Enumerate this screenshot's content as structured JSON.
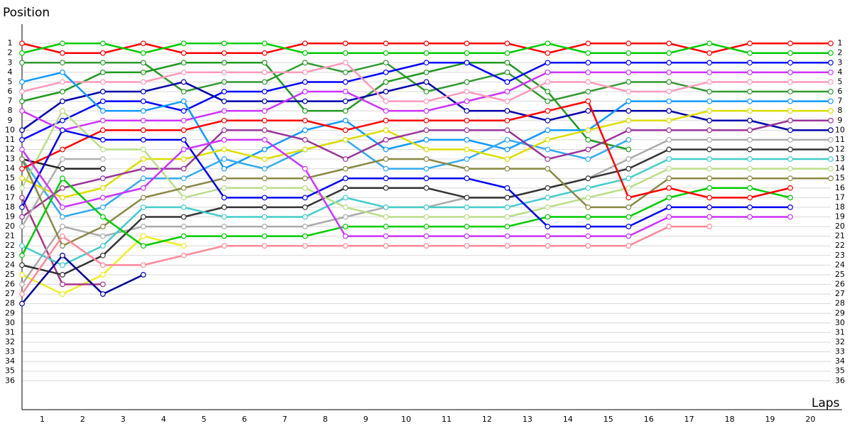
{
  "chart_data": {
    "type": "line",
    "y_label": "Position",
    "x_label": "Laps",
    "x": [
      0,
      1,
      2,
      3,
      4,
      5,
      6,
      7,
      8,
      9,
      10,
      11,
      12,
      13,
      14,
      15,
      16,
      17,
      18,
      19,
      20
    ],
    "xlim": [
      0,
      20
    ],
    "xticks": [
      1,
      2,
      3,
      4,
      5,
      6,
      7,
      8,
      9,
      10,
      11,
      12,
      13,
      14,
      15,
      16,
      17,
      18,
      19,
      20
    ],
    "ylim": [
      39,
      -1
    ],
    "yticks": [
      1,
      2,
      3,
      4,
      5,
      6,
      7,
      8,
      9,
      10,
      11,
      12,
      13,
      14,
      15,
      16,
      17,
      18,
      19,
      20,
      21,
      22,
      23,
      24,
      25,
      26,
      27,
      28,
      29,
      30,
      31,
      32,
      33,
      34,
      35,
      36
    ],
    "grid": true,
    "series": [
      {
        "color": "#ff0000",
        "values": [
          1,
          2,
          2,
          1,
          2,
          2,
          2,
          1,
          1,
          1,
          1,
          1,
          1,
          2,
          1,
          1,
          1,
          2,
          1,
          1,
          1
        ]
      },
      {
        "color": "#00cc00",
        "values": [
          2,
          1,
          1,
          2,
          1,
          1,
          1,
          2,
          2,
          2,
          2,
          2,
          2,
          1,
          2,
          2,
          2,
          1,
          2,
          2,
          2
        ]
      },
      {
        "color": "#339933",
        "values": [
          3,
          3,
          3,
          3,
          6,
          5,
          5,
          3,
          4,
          3,
          6,
          5,
          4,
          7,
          6,
          5,
          5,
          6,
          6,
          6,
          6
        ]
      },
      {
        "color": "#229922",
        "values": [
          7,
          6,
          4,
          4,
          3,
          3,
          3,
          8,
          8,
          5,
          4,
          3,
          3,
          6,
          11,
          12,
          null,
          null,
          null,
          null,
          null
        ]
      },
      {
        "color": "#0000ff",
        "values": [
          11,
          9,
          7,
          7,
          8,
          6,
          6,
          5,
          5,
          4,
          3,
          3,
          5,
          3,
          3,
          3,
          3,
          3,
          3,
          3,
          3
        ]
      },
      {
        "color": "#0000aa",
        "values": [
          10,
          7,
          6,
          6,
          5,
          7,
          7,
          7,
          7,
          6,
          5,
          8,
          8,
          9,
          8,
          8,
          8,
          9,
          9,
          10,
          10
        ]
      },
      {
        "color": "#cc33ff",
        "values": [
          8,
          10,
          9,
          9,
          9,
          8,
          8,
          6,
          6,
          8,
          8,
          7,
          6,
          4,
          4,
          4,
          4,
          4,
          4,
          4,
          4
        ]
      },
      {
        "color": "#ff99bb",
        "values": [
          6,
          5,
          5,
          5,
          4,
          4,
          4,
          4,
          3,
          7,
          7,
          6,
          7,
          5,
          5,
          6,
          6,
          5,
          5,
          5,
          5
        ]
      },
      {
        "color": "#1199ff",
        "values": [
          5,
          4,
          8,
          8,
          7,
          14,
          12,
          10,
          9,
          12,
          11,
          11,
          12,
          10,
          10,
          7,
          7,
          7,
          7,
          7,
          7
        ]
      },
      {
        "color": "#33aaee",
        "values": [
          13,
          19,
          18,
          15,
          15,
          13,
          14,
          12,
          11,
          14,
          14,
          13,
          11,
          12,
          13,
          11,
          null,
          null,
          null,
          null,
          null
        ]
      },
      {
        "color": "#dddd00",
        "values": [
          15,
          17,
          16,
          13,
          13,
          12,
          13,
          12,
          11,
          10,
          12,
          12,
          13,
          11,
          10,
          9,
          9,
          8,
          8,
          8,
          8
        ]
      },
      {
        "color": "#eeee22",
        "values": [
          25,
          27,
          25,
          21,
          22,
          null,
          null,
          null,
          null,
          null,
          null,
          null,
          null,
          null,
          null,
          null,
          null,
          null,
          null,
          null,
          null
        ]
      },
      {
        "color": "#993399",
        "values": [
          19,
          16,
          15,
          14,
          14,
          10,
          10,
          11,
          13,
          11,
          10,
          10,
          10,
          13,
          12,
          10,
          10,
          10,
          10,
          9,
          9
        ]
      },
      {
        "color": "#aa3388",
        "values": [
          17,
          26,
          26,
          null,
          null,
          null,
          null,
          null,
          null,
          null,
          null,
          null,
          null,
          null,
          null,
          null,
          null,
          null,
          null,
          null,
          null
        ]
      },
      {
        "color": "#aaaaaa",
        "values": [
          26,
          20,
          21,
          20,
          20,
          20,
          20,
          20,
          19,
          18,
          18,
          17,
          17,
          16,
          15,
          13,
          11,
          11,
          11,
          11,
          11
        ]
      },
      {
        "color": "#b0b0b0",
        "values": [
          20,
          13,
          13,
          null,
          null,
          null,
          null,
          null,
          null,
          null,
          null,
          null,
          null,
          null,
          null,
          null,
          null,
          null,
          null,
          null,
          null
        ]
      },
      {
        "color": "#333333",
        "values": [
          24,
          25,
          23,
          19,
          19,
          18,
          18,
          18,
          16,
          16,
          16,
          17,
          17,
          16,
          15,
          14,
          12,
          12,
          12,
          12,
          12
        ]
      },
      {
        "color": "#222222",
        "values": [
          13,
          14,
          14,
          null,
          null,
          null,
          null,
          null,
          null,
          null,
          null,
          null,
          null,
          null,
          null,
          null,
          null,
          null,
          null,
          null,
          null
        ]
      },
      {
        "color": "#44cccc",
        "values": [
          22,
          24,
          22,
          18,
          18,
          19,
          19,
          19,
          17,
          18,
          18,
          18,
          18,
          17,
          16,
          15,
          13,
          13,
          13,
          13,
          13
        ]
      },
      {
        "color": "#bbdd88",
        "values": [
          16,
          8,
          12,
          12,
          17,
          16,
          16,
          16,
          18,
          19,
          19,
          19,
          19,
          18,
          17,
          16,
          14,
          14,
          14,
          14,
          14
        ]
      },
      {
        "color": "#888844",
        "values": [
          13,
          22,
          20,
          17,
          16,
          15,
          15,
          15,
          14,
          13,
          13,
          14,
          14,
          14,
          18,
          18,
          15,
          15,
          15,
          15,
          15
        ]
      },
      {
        "color": "#00cc00",
        "values": [
          23,
          15,
          19,
          22,
          21,
          21,
          21,
          21,
          20,
          20,
          20,
          20,
          20,
          19,
          19,
          19,
          17,
          16,
          16,
          17,
          null
        ]
      },
      {
        "color": "#ff0000",
        "values": [
          14,
          12,
          10,
          10,
          10,
          9,
          9,
          9,
          10,
          9,
          9,
          9,
          9,
          8,
          7,
          17,
          16,
          17,
          17,
          16,
          null
        ]
      },
      {
        "color": "#0000ee",
        "values": [
          18,
          10,
          11,
          11,
          11,
          17,
          17,
          17,
          15,
          15,
          15,
          15,
          16,
          20,
          20,
          20,
          18,
          18,
          18,
          18,
          null
        ]
      },
      {
        "color": "#000099",
        "values": [
          28,
          23,
          27,
          25,
          null,
          null,
          null,
          null,
          null,
          null,
          null,
          null,
          null,
          null,
          null,
          null,
          null,
          null,
          null,
          null,
          null
        ]
      },
      {
        "color": "#cc33ff",
        "values": [
          12,
          18,
          17,
          16,
          12,
          11,
          11,
          14,
          21,
          21,
          21,
          21,
          21,
          21,
          21,
          21,
          19,
          19,
          19,
          19,
          null
        ]
      },
      {
        "color": "#ff8899",
        "values": [
          27,
          21,
          24,
          24,
          23,
          22,
          22,
          22,
          22,
          22,
          22,
          22,
          22,
          22,
          22,
          22,
          20,
          20,
          null,
          null,
          null
        ]
      }
    ]
  }
}
